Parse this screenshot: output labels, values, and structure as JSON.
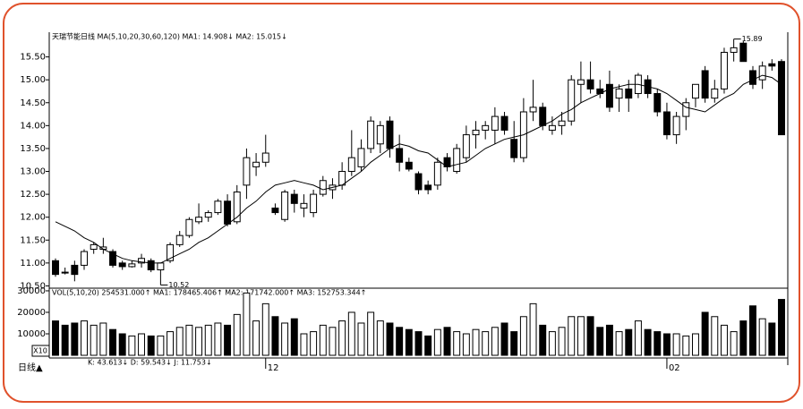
{
  "chart_data": {
    "type": "candlestick",
    "title": "天瑞节能日线 MA(5,10,20,30,60,120) MA1: 14.908↓ MA2: 15.015↓",
    "categories": [
      null,
      null,
      null,
      null,
      null,
      null,
      null,
      null,
      null,
      null,
      null,
      null,
      null,
      null,
      null,
      null,
      null,
      null,
      null,
      null,
      null,
      null,
      "12",
      null,
      null,
      null,
      null,
      null,
      null,
      null,
      null,
      null,
      null,
      null,
      null,
      null,
      null,
      null,
      null,
      null,
      null,
      null,
      null,
      null,
      null,
      null,
      null,
      null,
      null,
      null,
      null,
      null,
      null,
      null,
      null,
      null,
      null,
      null,
      null,
      null,
      null,
      null,
      null,
      null,
      "02",
      null,
      null,
      null,
      null,
      null,
      null,
      null,
      null,
      null,
      null,
      null,
      null
    ],
    "open": [
      11.05,
      10.8,
      10.95,
      10.95,
      11.3,
      11.3,
      11.25,
      11.0,
      10.92,
      11.0,
      11.05,
      10.85,
      11.05,
      11.4,
      11.6,
      11.9,
      12.0,
      12.1,
      12.35,
      11.9,
      12.7,
      13.1,
      13.2,
      12.2,
      11.95,
      12.5,
      12.2,
      12.1,
      12.5,
      12.6,
      12.7,
      13.0,
      13.1,
      13.5,
      13.6,
      14.1,
      13.5,
      13.2,
      12.95,
      12.7,
      12.7,
      13.3,
      13.0,
      13.3,
      13.8,
      13.9,
      13.9,
      14.2,
      13.7,
      13.3,
      14.3,
      14.4,
      13.9,
      14.0,
      14.1,
      14.9,
      15.0,
      14.8,
      14.9,
      14.6,
      14.8,
      14.7,
      15.0,
      14.7,
      14.3,
      13.8,
      14.2,
      14.6,
      15.2,
      14.6,
      14.8,
      15.6,
      15.8,
      15.2,
      15.0,
      15.35,
      15.4
    ],
    "high": [
      11.1,
      10.9,
      11.05,
      11.3,
      11.45,
      11.55,
      11.3,
      11.05,
      11.05,
      11.2,
      11.1,
      11.0,
      11.45,
      11.7,
      12.0,
      12.3,
      12.15,
      12.4,
      12.5,
      12.7,
      13.5,
      13.4,
      13.8,
      12.3,
      12.6,
      12.6,
      12.5,
      12.6,
      12.9,
      12.85,
      13.2,
      13.9,
      13.7,
      14.2,
      14.1,
      14.2,
      13.8,
      13.3,
      13.0,
      12.8,
      13.3,
      13.4,
      13.6,
      14.0,
      14.1,
      14.1,
      14.4,
      14.3,
      14.1,
      14.6,
      15.0,
      14.5,
      14.2,
      14.3,
      15.1,
      15.4,
      15.4,
      15.0,
      15.2,
      14.9,
      15.0,
      15.15,
      15.1,
      14.8,
      14.5,
      14.3,
      14.6,
      14.9,
      15.3,
      15.0,
      15.7,
      15.89,
      15.85,
      15.3,
      15.4,
      15.45,
      15.45
    ],
    "low": [
      10.7,
      10.75,
      10.6,
      10.85,
      11.2,
      11.2,
      10.9,
      10.85,
      10.9,
      10.9,
      10.8,
      10.52,
      11.0,
      11.35,
      11.55,
      11.85,
      11.9,
      12.05,
      11.8,
      11.85,
      12.4,
      12.9,
      13.1,
      12.05,
      11.9,
      12.1,
      12.0,
      12.0,
      12.45,
      12.4,
      12.6,
      12.9,
      13.0,
      13.4,
      13.4,
      13.3,
      13.0,
      13.0,
      12.5,
      12.5,
      12.6,
      13.0,
      12.95,
      13.2,
      13.5,
      13.7,
      13.6,
      13.8,
      13.2,
      13.2,
      14.1,
      13.9,
      13.8,
      13.8,
      14.0,
      14.5,
      14.7,
      14.6,
      14.3,
      14.3,
      14.3,
      14.6,
      14.6,
      14.2,
      13.7,
      13.6,
      13.9,
      14.4,
      14.5,
      14.5,
      14.7,
      15.4,
      15.4,
      14.8,
      14.8,
      15.2,
      13.8
    ],
    "close": [
      10.75,
      10.78,
      10.75,
      11.25,
      11.4,
      11.35,
      10.95,
      10.92,
      10.98,
      11.1,
      10.85,
      11.0,
      11.4,
      11.6,
      11.95,
      12.0,
      12.1,
      12.35,
      11.85,
      12.55,
      13.3,
      13.2,
      13.4,
      12.1,
      12.55,
      12.3,
      12.3,
      12.5,
      12.8,
      12.7,
      13.0,
      13.3,
      13.5,
      14.1,
      14.0,
      13.5,
      13.2,
      13.05,
      12.6,
      12.6,
      13.2,
      13.1,
      13.5,
      13.8,
      13.9,
      14.0,
      14.2,
      13.9,
      13.3,
      14.3,
      14.4,
      14.0,
      14.0,
      14.1,
      15.0,
      15.0,
      14.8,
      14.7,
      14.4,
      14.8,
      14.6,
      15.1,
      14.7,
      14.3,
      13.8,
      14.2,
      14.5,
      14.9,
      14.6,
      14.8,
      15.6,
      15.7,
      15.4,
      14.9,
      15.3,
      15.3,
      13.8
    ],
    "ma": {
      "color": "#000000",
      "values": [
        11.9,
        11.8,
        11.7,
        11.55,
        11.45,
        11.3,
        11.2,
        11.1,
        11.05,
        11.02,
        11.0,
        11.0,
        11.1,
        11.2,
        11.3,
        11.45,
        11.55,
        11.7,
        11.85,
        12.0,
        12.2,
        12.35,
        12.55,
        12.7,
        12.75,
        12.8,
        12.75,
        12.7,
        12.6,
        12.65,
        12.7,
        12.85,
        13.0,
        13.2,
        13.35,
        13.5,
        13.6,
        13.55,
        13.45,
        13.4,
        13.25,
        13.1,
        13.15,
        13.2,
        13.35,
        13.5,
        13.6,
        13.7,
        13.75,
        13.8,
        13.9,
        14.0,
        14.1,
        14.25,
        14.35,
        14.5,
        14.6,
        14.7,
        14.8,
        14.85,
        14.9,
        14.9,
        14.85,
        14.8,
        14.7,
        14.55,
        14.4,
        14.35,
        14.3,
        14.45,
        14.6,
        14.7,
        14.9,
        15.0,
        15.1,
        15.05,
        14.9
      ]
    },
    "ylim": [
      10.45,
      16.0
    ],
    "yticks": [
      {
        "value": 10.5,
        "label": "10.50"
      },
      {
        "value": 11,
        "label": "11.00"
      },
      {
        "value": 11.5,
        "label": "11.50"
      },
      {
        "value": 12,
        "label": "12.00"
      },
      {
        "value": 12.5,
        "label": "12.50"
      },
      {
        "value": 13,
        "label": "13.00"
      },
      {
        "value": 13.5,
        "label": "13.50"
      },
      {
        "value": 14,
        "label": "14.00"
      },
      {
        "value": 14.5,
        "label": "14.50"
      },
      {
        "value": 15,
        "label": "15.00"
      },
      {
        "value": 15.5,
        "label": "15.50"
      }
    ],
    "volume": {
      "title": "VOL(5,10,20) 254531.000↑ MA1: 178465.406↑ MA2: 171742.000↑ MA3: 152753.344↑",
      "unit": "X10",
      "values": [
        16000,
        14000,
        15000,
        16000,
        14000,
        15000,
        12000,
        10000,
        9000,
        10000,
        9000,
        9000,
        11000,
        13000,
        14000,
        13000,
        14000,
        15000,
        14000,
        19000,
        29000,
        16000,
        24000,
        18000,
        15000,
        17000,
        10000,
        11000,
        14000,
        13000,
        16000,
        20000,
        15000,
        20000,
        16000,
        15000,
        13000,
        12000,
        11000,
        9000,
        12000,
        13000,
        11000,
        10000,
        12000,
        11000,
        13000,
        15000,
        11000,
        18000,
        24000,
        14000,
        11000,
        13000,
        18000,
        18000,
        18000,
        13000,
        14000,
        11000,
        12000,
        16000,
        12000,
        11000,
        10000,
        10000,
        9000,
        10000,
        20000,
        18000,
        14000,
        11000,
        16000,
        23000,
        17000,
        15000,
        26000
      ],
      "ylim": [
        0,
        30400
      ],
      "yticks": [
        10000,
        20000,
        30000
      ]
    },
    "indicator": "K: 43.613↓ D: 59.543↓ J: 11.753↓",
    "period": "日线▲"
  }
}
